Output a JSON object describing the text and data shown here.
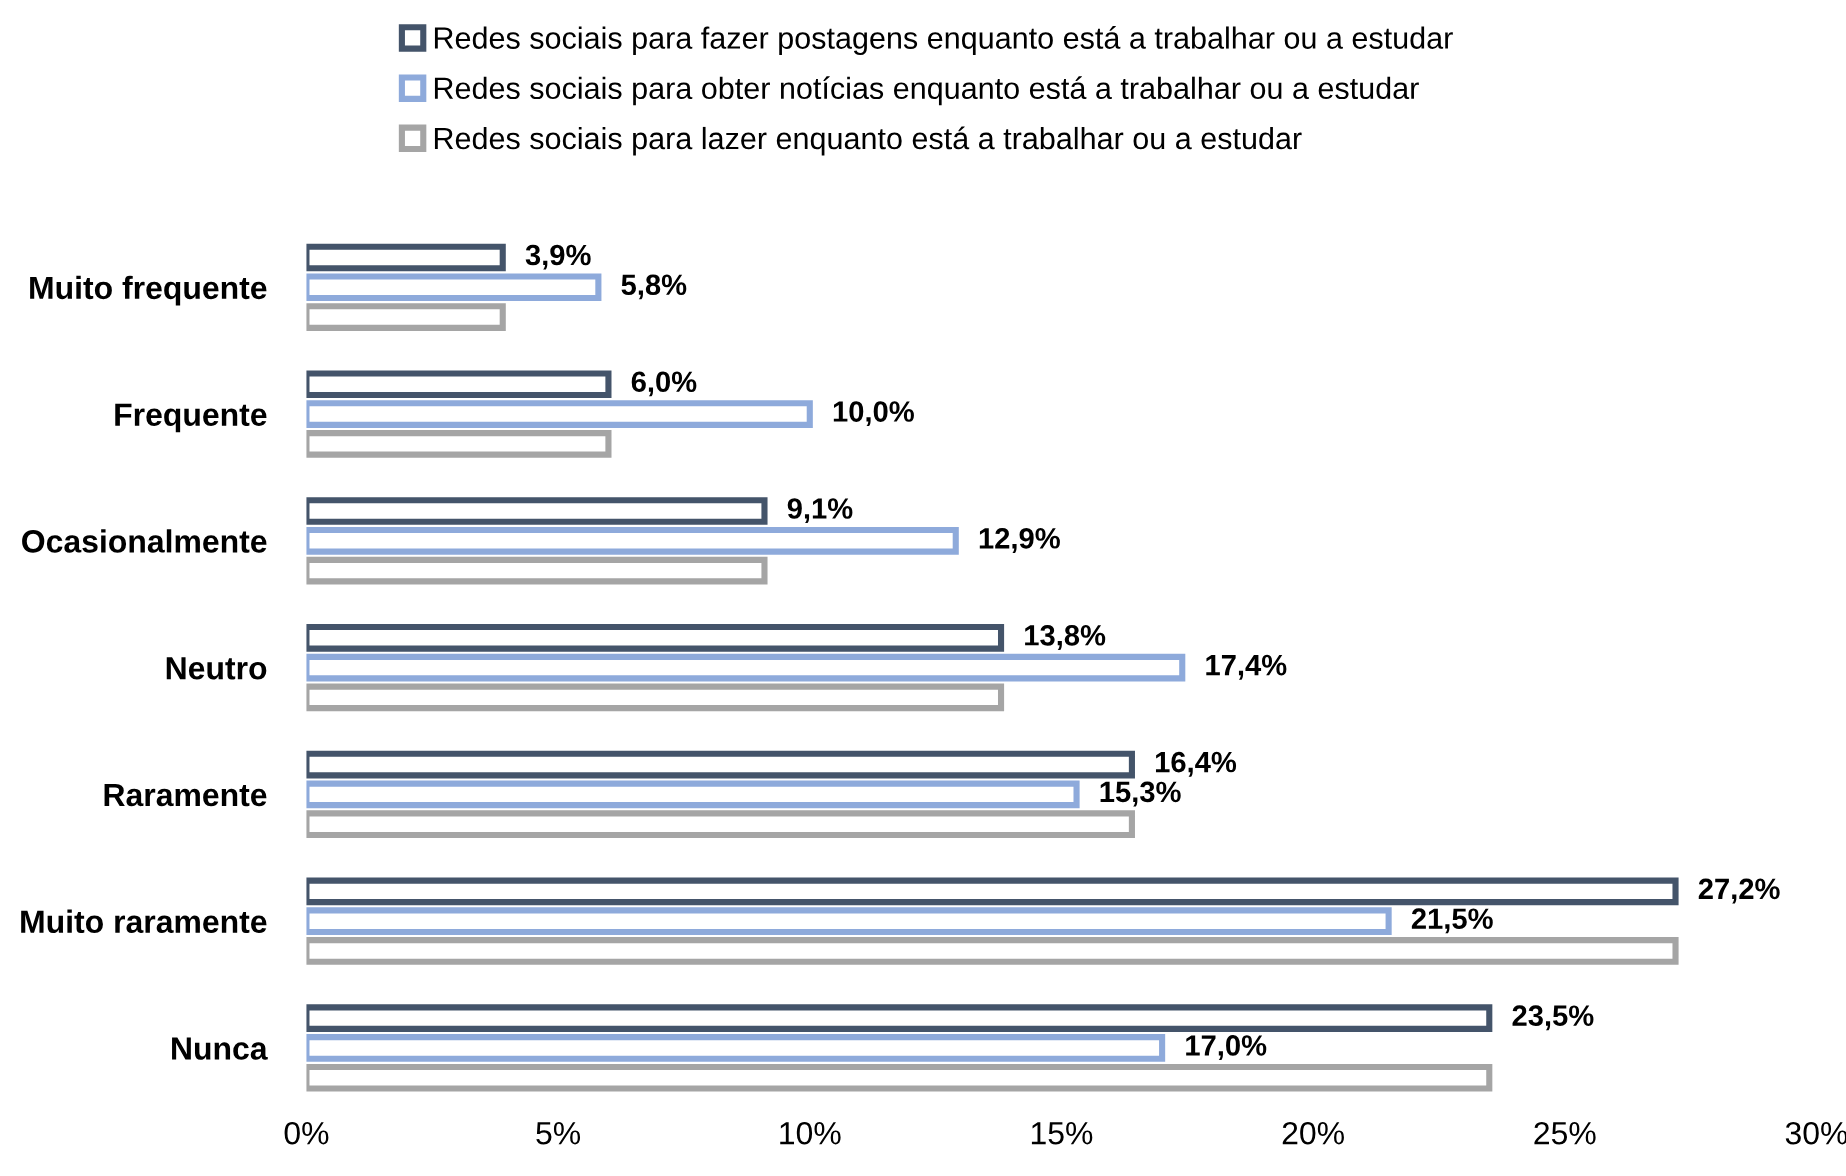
{
  "chart_data": {
    "type": "bar",
    "orientation": "horizontal",
    "categories": [
      "Muito frequente",
      "Frequente",
      "Ocasionalmente",
      "Neutro",
      "Raramente",
      "Muito raramente",
      "Nunca"
    ],
    "series": [
      {
        "name": "Redes sociais para fazer postagens enquanto está a trabalhar ou a estudar",
        "color": "#44546a",
        "values": [
          3.9,
          6.0,
          9.1,
          13.8,
          16.4,
          27.2,
          23.5
        ],
        "value_labels": [
          "3,9%",
          "6,0%",
          "9,1%",
          "13,8%",
          "16,4%",
          "27,2%",
          "23,5%"
        ]
      },
      {
        "name": "Redes sociais para obter notícias enquanto está a trabalhar ou a estudar",
        "color": "#8eaadb",
        "values": [
          5.8,
          10.0,
          12.9,
          17.4,
          15.3,
          21.5,
          17.0
        ],
        "value_labels": [
          "5,8%",
          "10,0%",
          "12,9%",
          "17,4%",
          "15,3%",
          "21,5%",
          "17,0%"
        ]
      },
      {
        "name": "Redes sociais para lazer enquanto está a trabalhar ou a estudar",
        "color": "#a5a5a5",
        "values": [
          3.9,
          6.0,
          9.1,
          13.8,
          16.4,
          27.2,
          23.5
        ]
      }
    ],
    "xlim": [
      0,
      30
    ],
    "xticks": [
      {
        "value": 0,
        "label": "0%"
      },
      {
        "value": 5,
        "label": "5%"
      },
      {
        "value": 10,
        "label": "10%"
      },
      {
        "value": 15,
        "label": "15%"
      },
      {
        "value": 20,
        "label": "20%"
      },
      {
        "value": 25,
        "label": "25%"
      },
      {
        "value": 30,
        "label": "30%"
      }
    ],
    "grid": false,
    "legend": "top"
  }
}
